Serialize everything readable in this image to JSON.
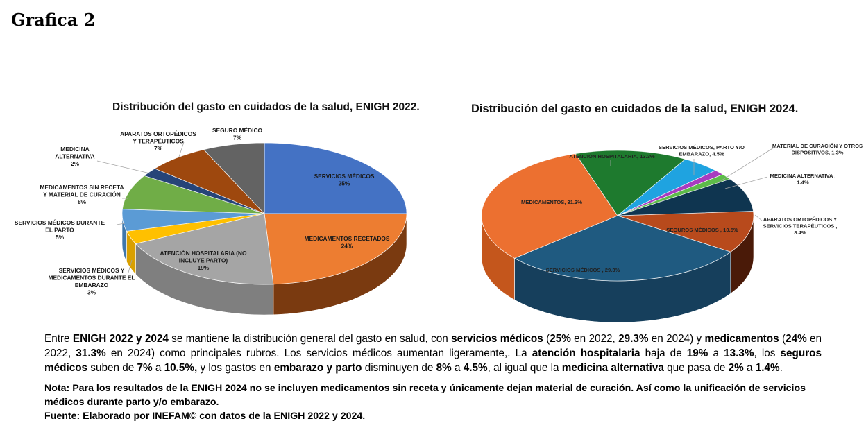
{
  "page": {
    "title": "Grafica 2"
  },
  "chart_data": [
    {
      "type": "pie",
      "title": "Distribución del gasto en cuidados de la salud, ENIGH 2022.",
      "style": "3d",
      "slices": [
        {
          "label": "SERVICIOS MÉDICOS",
          "value_label": "25%",
          "value": 25,
          "color": "#4472C4",
          "side_color": "#2F5597"
        },
        {
          "label": "MEDICAMENTOS RECETADOS",
          "value_label": "24%",
          "value": 24,
          "color": "#ED7D31",
          "side_color": "#7A3A10"
        },
        {
          "label": "ATENCIÓN HOSPITALARIA (NO INCLUYE PARTO)",
          "value_label": "19%",
          "value": 19,
          "color": "#A5A5A5",
          "side_color": "#7F7F7F"
        },
        {
          "label": "SERVICIOS MÉDICOS Y MEDICAMENTOS DURANTE EL EMBARAZO",
          "value_label": "3%",
          "value": 3,
          "color": "#FFC000",
          "side_color": "#D9A000"
        },
        {
          "label": "SERVICIOS MÉDICOS DURANTE EL PARTO",
          "value_label": "5%",
          "value": 5,
          "color": "#5B9BD5",
          "side_color": "#3F77AC"
        },
        {
          "label": "MEDICAMENTOS SIN RECETA Y MATERIAL DE CURACIÓN",
          "value_label": "8%",
          "value": 8,
          "color": "#70AD47",
          "side_color": "#4E7F30"
        },
        {
          "label": "MEDICINA ALTERNATIVA",
          "value_label": "2%",
          "value": 2,
          "color": "#264478",
          "side_color": "#1A3056"
        },
        {
          "label": "APARATOS ORTOPÉDICOS Y TERAPÉUTICOS",
          "value_label": "7%",
          "value": 7,
          "color": "#9E480E",
          "side_color": "#6E3209"
        },
        {
          "label": "SEGURO MÉDICO",
          "value_label": "7%",
          "value": 7,
          "color": "#636363",
          "side_color": "#444444"
        }
      ]
    },
    {
      "type": "pie",
      "title": "Distribución del gasto en cuidados de la salud, ENIGH 2024.",
      "style": "3d",
      "slices": [
        {
          "label": "SERVICIOS MÉDICOS",
          "value_label": "SERVICIOS MÉDICOS , 29.3%",
          "value": 29.3,
          "color": "#1F5A80",
          "side_color": "#163F5C"
        },
        {
          "label": "MEDICAMENTOS",
          "value_label": "MEDICAMENTOS, 31.3%",
          "value": 31.3,
          "color": "#EC7030",
          "side_color": "#C4561C"
        },
        {
          "label": "ATENCIÓN HOSPITALARIA",
          "value_label": "ATENCIÓN HOSPITALARIA, 13.3%",
          "value": 13.3,
          "color": "#1E7A2E",
          "side_color": "#145520"
        },
        {
          "label": "SERVICIOS MÉDICOS, PARTO Y/O EMBARAZO",
          "value_label": "SERVICIOS MÉDICOS, PARTO Y/O EMBARAZO, 4.5%",
          "value": 4.5,
          "color": "#1FA3E0",
          "side_color": "#1478A6"
        },
        {
          "label": "MATERIAL DE CURACIÓN Y OTROS DISPOSITIVOS",
          "value_label": "MATERIAL DE CURACIÓN Y OTROS DISPOSITIVOS, 1.3%",
          "value": 1.3,
          "color": "#A83CC0",
          "side_color": "#7A2A8C"
        },
        {
          "label": "MEDICINA ALTERNATIVA",
          "value_label": "MEDICINA ALTERNATIVA , 1.4%",
          "value": 1.4,
          "color": "#5DBB4A",
          "side_color": "#3F8A30"
        },
        {
          "label": "APARATOS ORTOPÉDICOS Y SERVICIOS TERAPÉUTICOS",
          "value_label": "APARATOS ORTOPÉDICOS Y SERVICIOS TERAPÉUTICOS , 8.4%",
          "value": 8.4,
          "color": "#0F3550",
          "side_color": "#0A2538"
        },
        {
          "label": "SEGUROS MÉDICOS",
          "value_label": "SEGUROS MÉDICOS , 10.5%",
          "value": 10.5,
          "color": "#B84A1C",
          "side_color": "#4A1A08"
        }
      ]
    }
  ],
  "summary": {
    "segments": [
      {
        "t": "Entre ",
        "b": false
      },
      {
        "t": "ENIGH 2022 y 2024",
        "b": true
      },
      {
        "t": " se mantiene la distribución general del gasto en salud, con ",
        "b": false
      },
      {
        "t": "servicios médicos",
        "b": true
      },
      {
        "t": " (",
        "b": false
      },
      {
        "t": "25%",
        "b": true
      },
      {
        "t": " en 2022, ",
        "b": false
      },
      {
        "t": "29.3%",
        "b": true
      },
      {
        "t": " en 2024) y ",
        "b": false
      },
      {
        "t": "medicamentos",
        "b": true
      },
      {
        "t": " (",
        "b": false
      },
      {
        "t": "24%",
        "b": true
      },
      {
        "t": " en 2022, ",
        "b": false
      },
      {
        "t": "31.3%",
        "b": true
      },
      {
        "t": " en 2024) como principales rubros. Los servicios médicos aumentan ligeramente,. La ",
        "b": false
      },
      {
        "t": "atención hospitalaria",
        "b": true
      },
      {
        "t": " baja de ",
        "b": false
      },
      {
        "t": "19%",
        "b": true
      },
      {
        "t": " a ",
        "b": false
      },
      {
        "t": "13.3%",
        "b": true
      },
      {
        "t": ", los ",
        "b": false
      },
      {
        "t": "seguros médicos",
        "b": true
      },
      {
        "t": " suben de ",
        "b": false
      },
      {
        "t": "7%",
        "b": true
      },
      {
        "t": " a ",
        "b": false
      },
      {
        "t": "10.5%,",
        "b": true
      },
      {
        "t": " y los gastos en ",
        "b": false
      },
      {
        "t": "embarazo y parto",
        "b": true
      },
      {
        "t": " disminuyen de ",
        "b": false
      },
      {
        "t": "8%",
        "b": true
      },
      {
        "t": " a ",
        "b": false
      },
      {
        "t": "4.5%",
        "b": true
      },
      {
        "t": ", al igual que la ",
        "b": false
      },
      {
        "t": "medicina alternativa",
        "b": true
      },
      {
        "t": " que pasa de ",
        "b": false
      },
      {
        "t": "2%",
        "b": true
      },
      {
        "t": " a ",
        "b": false
      },
      {
        "t": "1.4%",
        "b": true
      },
      {
        "t": ".",
        "b": false
      }
    ]
  },
  "note": "Nota: Para los resultados de la ENIGH 2024 no se incluyen medicamentos sin receta y únicamente dejan material de curación. Así como la unificación de servicios médicos durante parto y/o embarazo.",
  "source": "Fuente: Elaborado por INEFAM© con datos de la ENIGH 2022 y 2024."
}
